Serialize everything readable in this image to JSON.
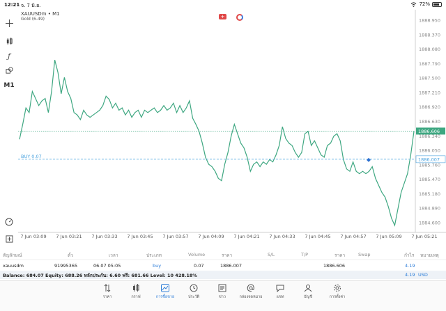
{
  "status": {
    "time": "12:21",
    "date": "จ. 7 มิ.ย.",
    "battery": "72%"
  },
  "chart": {
    "symbol": "XAUUSDm • M1",
    "description": "Gold (6-49)",
    "timeframe": "M1",
    "price_labels": [
      "1888.950",
      "1888.370",
      "1888.080",
      "1887.790",
      "1887.500",
      "1887.210",
      "1886.920",
      "1886.630",
      "1886.340",
      "1886.050",
      "1885.760",
      "1885.470",
      "1885.180",
      "1884.890",
      "1884.600"
    ],
    "current_price": "1886.606",
    "buy_price_label": "1886.007",
    "buy_label": "BUY 0.07",
    "time_labels": [
      "7 Jun 03:09",
      "7 Jun 03:21",
      "7 Jun 03:33",
      "7 Jun 03:45",
      "7 Jun 03:57",
      "7 Jun 04:09",
      "7 Jun 04:21",
      "7 Jun 04:33",
      "7 Jun 04:45",
      "7 Jun 04:57",
      "7 Jun 05:09",
      "7 Jun 05:21"
    ],
    "colors": {
      "line": "#3ea781",
      "bid": "#3ea781",
      "buy": "#4aa3df",
      "price_box": "#3ea781"
    }
  },
  "chart_data": {
    "type": "line",
    "title": "",
    "xlabel": "",
    "ylabel": "",
    "ylim": [
      1884.45,
      1889.1
    ],
    "values": [
      1886.43,
      1886.75,
      1887.1,
      1887.0,
      1887.45,
      1887.3,
      1887.15,
      1887.25,
      1887.3,
      1887.0,
      1887.45,
      1888.12,
      1887.85,
      1887.4,
      1887.75,
      1887.45,
      1887.3,
      1887.0,
      1886.95,
      1886.85,
      1887.05,
      1886.95,
      1886.9,
      1886.95,
      1887.0,
      1887.05,
      1887.15,
      1887.35,
      1887.28,
      1887.1,
      1887.2,
      1887.05,
      1887.1,
      1886.95,
      1887.05,
      1886.9,
      1887.0,
      1887.05,
      1886.9,
      1887.05,
      1887.0,
      1887.05,
      1887.1,
      1887.0,
      1887.05,
      1887.15,
      1887.05,
      1887.1,
      1887.2,
      1887.0,
      1887.15,
      1887.0,
      1887.1,
      1887.25,
      1886.88,
      1886.75,
      1886.6,
      1886.35,
      1886.05,
      1885.9,
      1885.85,
      1885.75,
      1885.6,
      1885.55,
      1885.9,
      1886.15,
      1886.5,
      1886.75,
      1886.55,
      1886.35,
      1886.25,
      1886.05,
      1885.75,
      1885.9,
      1885.95,
      1885.85,
      1885.95,
      1885.9,
      1886.0,
      1885.95,
      1886.1,
      1886.3,
      1886.7,
      1886.45,
      1886.35,
      1886.3,
      1886.15,
      1886.05,
      1886.15,
      1886.55,
      1886.6,
      1886.3,
      1886.4,
      1886.25,
      1886.1,
      1886.05,
      1886.3,
      1886.35,
      1886.5,
      1886.55,
      1886.4,
      1886.0,
      1885.8,
      1885.75,
      1885.95,
      1885.75,
      1885.7,
      1885.75,
      1885.7,
      1885.75,
      1885.85,
      1885.6,
      1885.45,
      1885.3,
      1885.2,
      1885.0,
      1884.75,
      1884.6,
      1884.95,
      1885.3,
      1885.5,
      1885.7,
      1886.1,
      1886.6
    ]
  },
  "table": {
    "headers": [
      "สัญลักษณ์",
      "ตั๋ว",
      "เวลา",
      "ประเภท",
      "Volume",
      "ราคา",
      "S/L",
      "T/P",
      "ราคา",
      "Swap",
      "กำไร",
      "หมายเหตุ"
    ],
    "row": {
      "symbol": "xauusdm",
      "ticket": "91995365",
      "time": "06.07 05:05",
      "type": "buy",
      "volume": "0.07",
      "open_price": "1886.007",
      "sl": "",
      "tp": "",
      "price": "1886.606",
      "swap": "",
      "profit": "4.19",
      "comment": ""
    },
    "balance_text": "Balance: 684.07 Equity: 688.26 หลักประกัน: 6.60 ฟรี: 681.66 Level: 10 428.18%",
    "balance_profit": "4.19",
    "currency": "USD"
  },
  "tabs": [
    {
      "label": "ราคา",
      "icon": "arrows-updown-icon"
    },
    {
      "label": "กราฟ",
      "icon": "candles-icon"
    },
    {
      "label": "การซื้อขาย",
      "icon": "trade-chart-icon"
    },
    {
      "label": "ประวัติ",
      "icon": "history-icon"
    },
    {
      "label": "ข่าว",
      "icon": "news-icon"
    },
    {
      "label": "กล่องจดหมาย",
      "icon": "at-icon"
    },
    {
      "label": "แชท",
      "icon": "chat-icon"
    },
    {
      "label": "บัญชี",
      "icon": "account-icon"
    },
    {
      "label": "การตั้งค่า",
      "icon": "gear-icon"
    }
  ]
}
